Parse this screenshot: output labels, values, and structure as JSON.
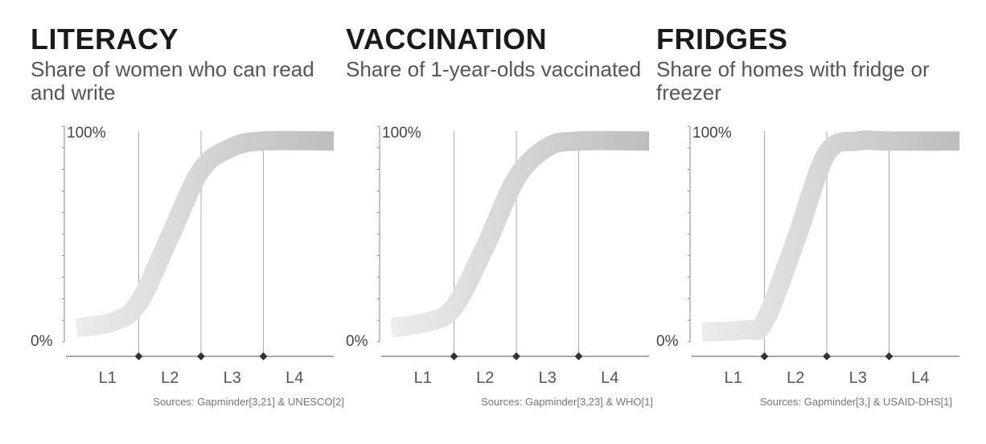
{
  "chart_data": [
    {
      "type": "line",
      "title": "LITERACY",
      "subtitle": "Share of women who can read and write",
      "yticks": [
        "0%",
        "100%"
      ],
      "ylim": [
        0,
        100
      ],
      "categories": [
        "L1",
        "L2",
        "L3",
        "L4"
      ],
      "series": [
        {
          "values": [
            [
              0,
              6
            ],
            [
              0.6,
              9
            ],
            [
              1.0,
              18
            ],
            [
              1.5,
              50
            ],
            [
              2.0,
              82
            ],
            [
              2.5,
              93
            ],
            [
              3.0,
              96
            ],
            [
              4.0,
              96
            ]
          ]
        }
      ],
      "source": "Sources: Gapminder[3,21] & UNESCO[2]"
    },
    {
      "type": "line",
      "title": "VACCINATION",
      "subtitle": "Share of 1-year-olds vaccinated",
      "yticks": [
        "0%",
        "100%"
      ],
      "ylim": [
        0,
        100
      ],
      "categories": [
        "L1",
        "L2",
        "L3",
        "L4"
      ],
      "series": [
        {
          "values": [
            [
              0,
              6
            ],
            [
              0.6,
              9
            ],
            [
              1.0,
              16
            ],
            [
              1.5,
              45
            ],
            [
              2.0,
              78
            ],
            [
              2.5,
              93
            ],
            [
              3.0,
              96
            ],
            [
              4.0,
              96
            ]
          ]
        }
      ],
      "source": "Sources: Gapminder[3,23] & WHO[1]"
    },
    {
      "type": "line",
      "title": "FRIDGES",
      "subtitle": "Share of homes with fridge or freezer",
      "yticks": [
        "0%",
        "100%"
      ],
      "ylim": [
        0,
        100
      ],
      "categories": [
        "L1",
        "L2",
        "L3",
        "L4"
      ],
      "series": [
        {
          "values": [
            [
              0,
              4
            ],
            [
              0.7,
              5
            ],
            [
              1.0,
              9
            ],
            [
              1.5,
              48
            ],
            [
              2.0,
              90
            ],
            [
              2.5,
              96
            ],
            [
              3.0,
              96
            ],
            [
              4.0,
              96
            ]
          ]
        }
      ],
      "source": "Sources: Gapminder[3,] & USAID-DHS[1]"
    }
  ]
}
